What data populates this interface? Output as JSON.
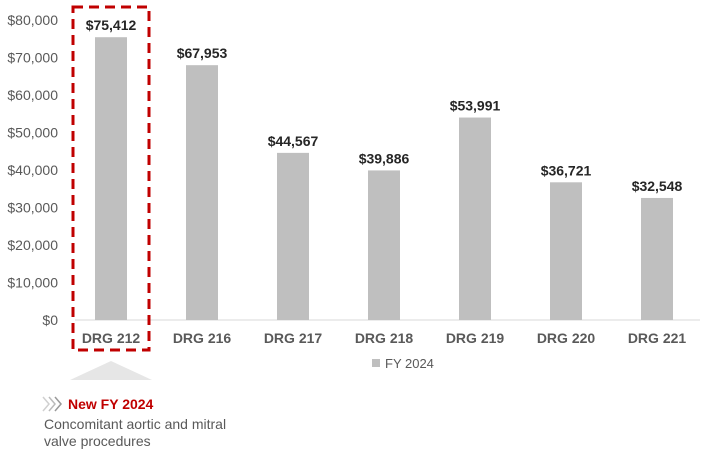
{
  "chart_data": {
    "type": "bar",
    "categories": [
      "DRG 212",
      "DRG 216",
      "DRG 217",
      "DRG 218",
      "DRG 219",
      "DRG 220",
      "DRG 221"
    ],
    "series": [
      {
        "name": "FY 2024",
        "values": [
          75412,
          67953,
          44567,
          39886,
          53991,
          36721,
          32548
        ]
      }
    ],
    "data_labels": [
      "$75,412",
      "$67,953",
      "$44,567",
      "$39,886",
      "$53,991",
      "$36,721",
      "$32,548"
    ],
    "yticks": [
      "$0",
      "$10,000",
      "$20,000",
      "$30,000",
      "$40,000",
      "$50,000",
      "$60,000",
      "$70,000",
      "$80,000"
    ],
    "ylim": [
      0,
      80000
    ],
    "grid": false,
    "legend": "bottom",
    "bar_color": "#bfbfbf",
    "highlight": {
      "category": "DRG 212",
      "color": "#c00000"
    }
  },
  "annotation": {
    "title": "New FY 2024",
    "body": "Concomitant aortic and mitral valve procedures"
  }
}
